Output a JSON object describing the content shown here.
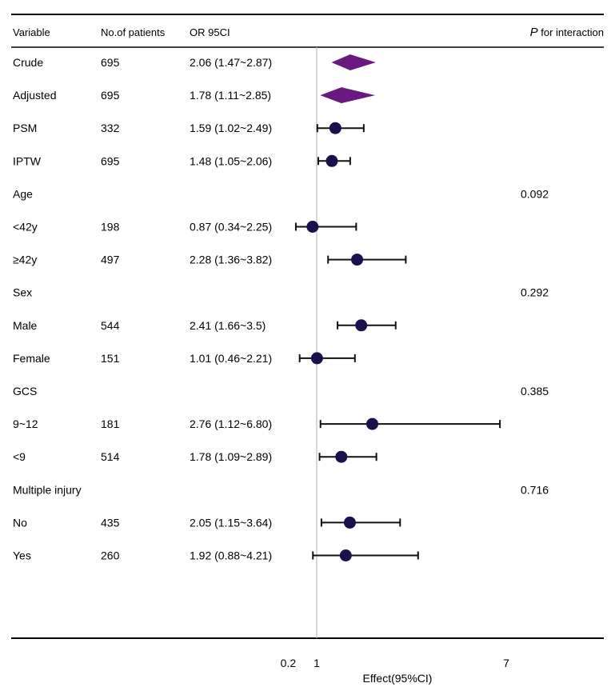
{
  "chart_data": {
    "type": "forest",
    "title": "",
    "xlabel": "Effect(95%CI)",
    "ylabel": "",
    "x_ticks": [
      {
        "value": 0.2,
        "label": "0.2"
      },
      {
        "value": 1,
        "label": "1"
      },
      {
        "value": 7,
        "label": "7"
      }
    ],
    "x_range": [
      0,
      8
    ],
    "reference_line": 1,
    "columns": {
      "variable": "Variable",
      "patients": "No.of patients",
      "or": "OR 95CI",
      "p_italic": "P",
      "p_rest": " for interaction"
    },
    "rows": [
      {
        "label": "Crude",
        "n": "695",
        "or_text": "2.06 (1.47~2.87)",
        "est": 2.06,
        "lo": 1.47,
        "hi": 2.87,
        "shape": "diamond",
        "p": ""
      },
      {
        "label": "Adjusted",
        "n": "695",
        "or_text": "1.78 (1.11~2.85)",
        "est": 1.78,
        "lo": 1.11,
        "hi": 2.85,
        "shape": "diamond",
        "p": ""
      },
      {
        "label": "PSM",
        "n": "332",
        "or_text": "1.59 (1.02~2.49)",
        "est": 1.59,
        "lo": 1.02,
        "hi": 2.49,
        "shape": "point",
        "p": ""
      },
      {
        "label": "IPTW",
        "n": "695",
        "or_text": "1.48 (1.05~2.06)",
        "est": 1.48,
        "lo": 1.05,
        "hi": 2.06,
        "shape": "point",
        "p": ""
      },
      {
        "label": "Age",
        "n": "",
        "or_text": "",
        "est": null,
        "lo": null,
        "hi": null,
        "shape": "none",
        "p": "0.092"
      },
      {
        "label": "<42y",
        "n": "198",
        "or_text": "0.87 (0.34~2.25)",
        "est": 0.87,
        "lo": 0.34,
        "hi": 2.25,
        "shape": "point",
        "p": ""
      },
      {
        "label": "≥42y",
        "n": "497",
        "or_text": "2.28 (1.36~3.82)",
        "est": 2.28,
        "lo": 1.36,
        "hi": 3.82,
        "shape": "point",
        "p": ""
      },
      {
        "label": "Sex",
        "n": "",
        "or_text": "",
        "est": null,
        "lo": null,
        "hi": null,
        "shape": "none",
        "p": "0.292"
      },
      {
        "label": "Male",
        "n": "544",
        "or_text": "2.41 (1.66~3.5)",
        "est": 2.41,
        "lo": 1.66,
        "hi": 3.5,
        "shape": "point",
        "p": ""
      },
      {
        "label": "Female",
        "n": "151",
        "or_text": "1.01 (0.46~2.21)",
        "est": 1.01,
        "lo": 0.46,
        "hi": 2.21,
        "shape": "point",
        "p": ""
      },
      {
        "label": "GCS",
        "n": "",
        "or_text": "",
        "est": null,
        "lo": null,
        "hi": null,
        "shape": "none",
        "p": "0.385"
      },
      {
        "label": "9~12",
        "n": "181",
        "or_text": "2.76 (1.12~6.80)",
        "est": 2.76,
        "lo": 1.12,
        "hi": 6.8,
        "shape": "point",
        "p": ""
      },
      {
        "label": "<9",
        "n": "514",
        "or_text": "1.78 (1.09~2.89)",
        "est": 1.78,
        "lo": 1.09,
        "hi": 2.89,
        "shape": "point",
        "p": ""
      },
      {
        "label": "Multiple injury",
        "n": "",
        "or_text": "",
        "est": null,
        "lo": null,
        "hi": null,
        "shape": "none",
        "p": "0.716"
      },
      {
        "label": "No",
        "n": "435",
        "or_text": "2.05 (1.15~3.64)",
        "est": 2.05,
        "lo": 1.15,
        "hi": 3.64,
        "shape": "point",
        "p": ""
      },
      {
        "label": "Yes",
        "n": "260",
        "or_text": "1.92 (0.88~4.21)",
        "est": 1.92,
        "lo": 0.88,
        "hi": 4.21,
        "shape": "point",
        "p": ""
      }
    ],
    "colors": {
      "diamond": "#6a1a7f",
      "point": "#1c0f4d",
      "ci": "#111111",
      "ref_line": "#b0b0b0",
      "rule": "#000000"
    }
  }
}
